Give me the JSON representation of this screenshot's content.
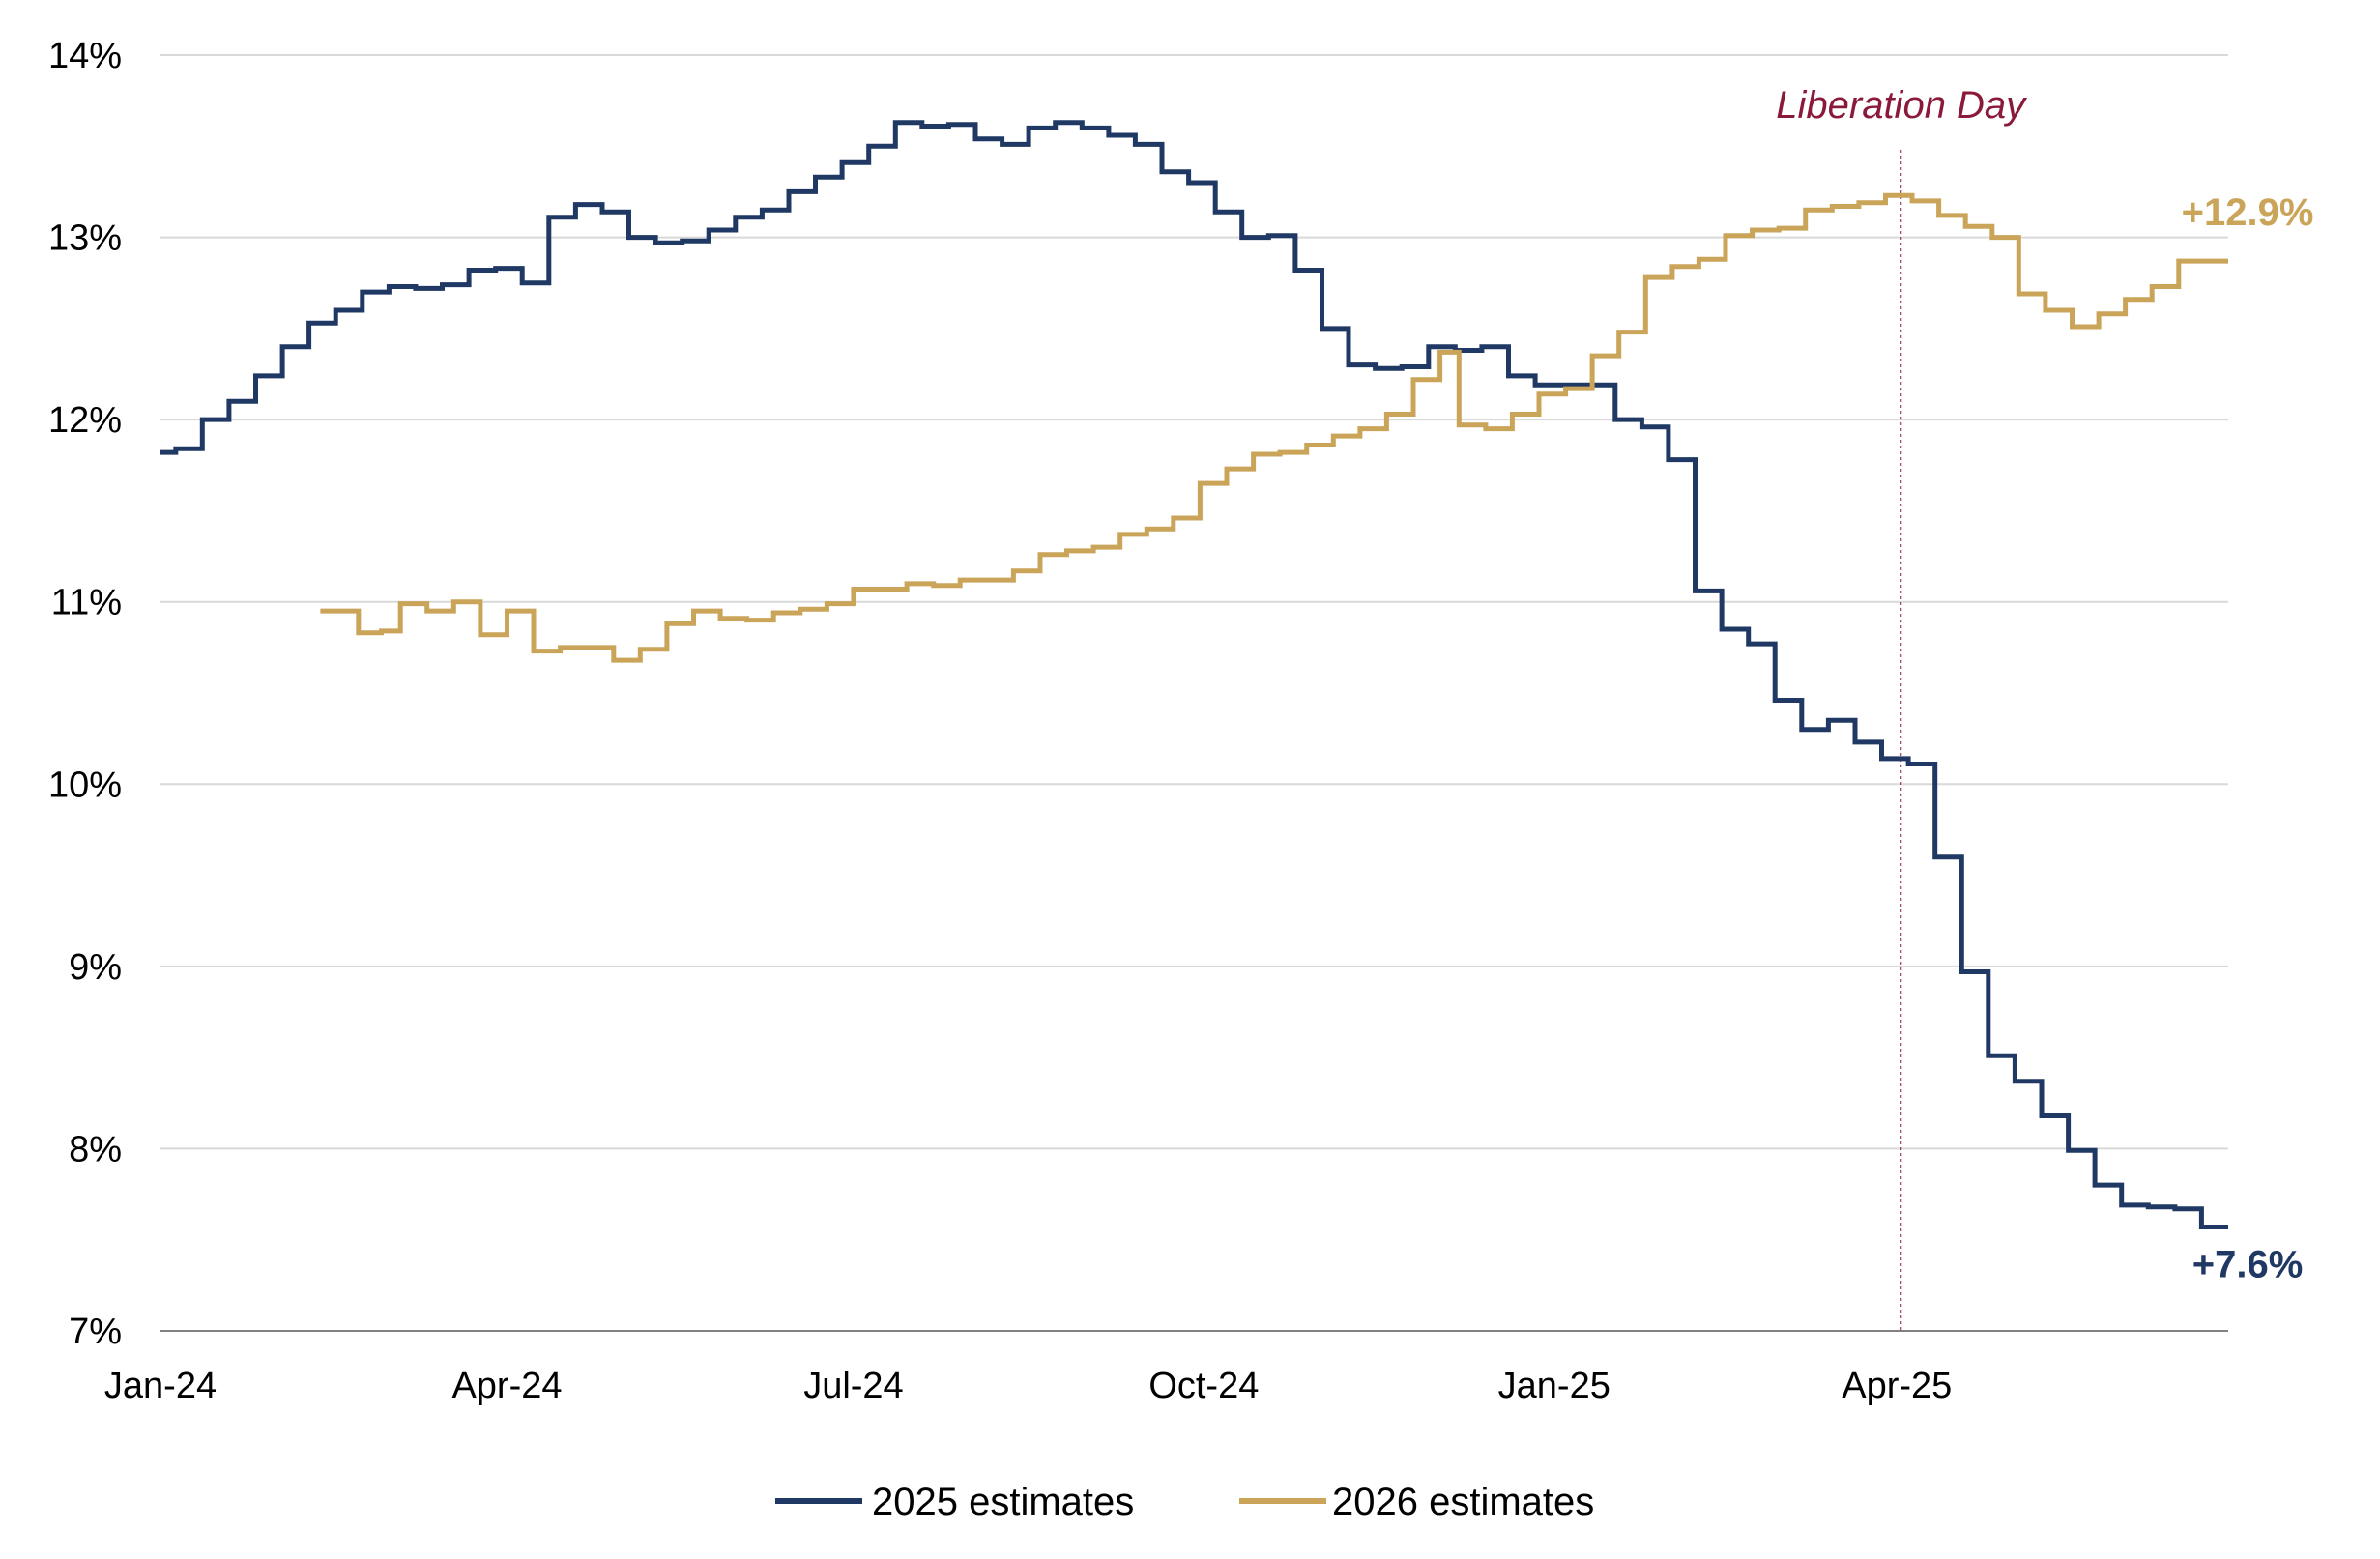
{
  "chart_data": {
    "type": "line",
    "title": "",
    "xlabel": "",
    "ylabel": "",
    "ylim": [
      7,
      14
    ],
    "y_ticks": [
      "7%",
      "8%",
      "9%",
      "10%",
      "11%",
      "12%",
      "13%",
      "14%"
    ],
    "y_tick_values": [
      7,
      8,
      9,
      10,
      11,
      12,
      13,
      14
    ],
    "x_ticks": [
      "Jan-24",
      "Apr-24",
      "Jul-24",
      "Oct-24",
      "Jan-25",
      "Apr-25"
    ],
    "x_tick_dates": [
      "2024-01-01",
      "2024-04-01",
      "2024-07-01",
      "2024-10-01",
      "2025-01-01",
      "2025-04-01"
    ],
    "xlim": [
      "2024-01-01",
      "2025-06-27"
    ],
    "grid": true,
    "legend_position": "bottom-center",
    "series": [
      {
        "name": "2025 estimates",
        "color": "#1f3864",
        "points": [
          [
            "2024-01-01",
            11.82
          ],
          [
            "2024-01-05",
            11.84
          ],
          [
            "2024-01-12",
            12.0
          ],
          [
            "2024-01-19",
            12.1
          ],
          [
            "2024-01-26",
            12.24
          ],
          [
            "2024-02-02",
            12.4
          ],
          [
            "2024-02-09",
            12.53
          ],
          [
            "2024-02-16",
            12.6
          ],
          [
            "2024-02-23",
            12.7
          ],
          [
            "2024-03-01",
            12.73
          ],
          [
            "2024-03-08",
            12.72
          ],
          [
            "2024-03-15",
            12.74
          ],
          [
            "2024-03-22",
            12.82
          ],
          [
            "2024-03-29",
            12.83
          ],
          [
            "2024-04-05",
            12.75
          ],
          [
            "2024-04-12",
            13.11
          ],
          [
            "2024-04-19",
            13.18
          ],
          [
            "2024-04-26",
            13.14
          ],
          [
            "2024-05-03",
            13.0
          ],
          [
            "2024-05-10",
            12.97
          ],
          [
            "2024-05-17",
            12.98
          ],
          [
            "2024-05-24",
            13.04
          ],
          [
            "2024-05-31",
            13.11
          ],
          [
            "2024-06-07",
            13.15
          ],
          [
            "2024-06-14",
            13.25
          ],
          [
            "2024-06-21",
            13.33
          ],
          [
            "2024-06-28",
            13.41
          ],
          [
            "2024-07-05",
            13.5
          ],
          [
            "2024-07-12",
            13.63
          ],
          [
            "2024-07-19",
            13.61
          ],
          [
            "2024-07-26",
            13.62
          ],
          [
            "2024-08-02",
            13.54
          ],
          [
            "2024-08-09",
            13.51
          ],
          [
            "2024-08-16",
            13.6
          ],
          [
            "2024-08-23",
            13.63
          ],
          [
            "2024-08-30",
            13.6
          ],
          [
            "2024-09-06",
            13.56
          ],
          [
            "2024-09-13",
            13.51
          ],
          [
            "2024-09-20",
            13.36
          ],
          [
            "2024-09-27",
            13.3
          ],
          [
            "2024-10-04",
            13.14
          ],
          [
            "2024-10-11",
            13.0
          ],
          [
            "2024-10-18",
            13.01
          ],
          [
            "2024-10-25",
            12.82
          ],
          [
            "2024-11-01",
            12.5
          ],
          [
            "2024-11-08",
            12.3
          ],
          [
            "2024-11-15",
            12.28
          ],
          [
            "2024-11-22",
            12.29
          ],
          [
            "2024-11-29",
            12.4
          ],
          [
            "2024-12-06",
            12.38
          ],
          [
            "2024-12-13",
            12.4
          ],
          [
            "2024-12-20",
            12.24
          ],
          [
            "2024-12-27",
            12.19
          ],
          [
            "2025-01-03",
            12.19
          ],
          [
            "2025-01-10",
            12.19
          ],
          [
            "2025-01-17",
            12.0
          ],
          [
            "2025-01-24",
            11.96
          ],
          [
            "2025-01-31",
            11.78
          ],
          [
            "2025-02-07",
            11.06
          ],
          [
            "2025-02-14",
            10.85
          ],
          [
            "2025-02-21",
            10.77
          ],
          [
            "2025-02-28",
            10.46
          ],
          [
            "2025-03-07",
            10.3
          ],
          [
            "2025-03-14",
            10.35
          ],
          [
            "2025-03-21",
            10.23
          ],
          [
            "2025-03-28",
            10.14
          ],
          [
            "2025-04-04",
            10.11
          ],
          [
            "2025-04-11",
            9.6
          ],
          [
            "2025-04-18",
            8.97
          ],
          [
            "2025-04-25",
            8.51
          ],
          [
            "2025-05-02",
            8.37
          ],
          [
            "2025-05-09",
            8.18
          ],
          [
            "2025-05-16",
            7.99
          ],
          [
            "2025-05-23",
            7.8
          ],
          [
            "2025-05-30",
            7.69
          ],
          [
            "2025-06-06",
            7.68
          ],
          [
            "2025-06-13",
            7.67
          ],
          [
            "2025-06-20",
            7.57
          ],
          [
            "2025-06-27",
            7.57
          ]
        ]
      },
      {
        "name": "2026 estimates",
        "color": "#c9a459",
        "points": [
          [
            "2024-02-12",
            10.95
          ],
          [
            "2024-02-19",
            10.95
          ],
          [
            "2024-02-22",
            10.83
          ],
          [
            "2024-02-28",
            10.84
          ],
          [
            "2024-03-04",
            10.99
          ],
          [
            "2024-03-11",
            10.95
          ],
          [
            "2024-03-18",
            11.0
          ],
          [
            "2024-03-25",
            10.82
          ],
          [
            "2024-04-01",
            10.95
          ],
          [
            "2024-04-08",
            10.73
          ],
          [
            "2024-04-15",
            10.75
          ],
          [
            "2024-04-29",
            10.68
          ],
          [
            "2024-05-06",
            10.74
          ],
          [
            "2024-05-13",
            10.88
          ],
          [
            "2024-05-20",
            10.95
          ],
          [
            "2024-05-27",
            10.91
          ],
          [
            "2024-06-03",
            10.9
          ],
          [
            "2024-06-10",
            10.94
          ],
          [
            "2024-06-17",
            10.96
          ],
          [
            "2024-06-24",
            10.99
          ],
          [
            "2024-07-01",
            11.07
          ],
          [
            "2024-07-15",
            11.1
          ],
          [
            "2024-07-22",
            11.09
          ],
          [
            "2024-07-29",
            11.12
          ],
          [
            "2024-08-12",
            11.17
          ],
          [
            "2024-08-19",
            11.26
          ],
          [
            "2024-08-26",
            11.28
          ],
          [
            "2024-09-02",
            11.3
          ],
          [
            "2024-09-09",
            11.37
          ],
          [
            "2024-09-16",
            11.4
          ],
          [
            "2024-09-23",
            11.46
          ],
          [
            "2024-09-30",
            11.65
          ],
          [
            "2024-10-07",
            11.73
          ],
          [
            "2024-10-14",
            11.81
          ],
          [
            "2024-10-21",
            11.82
          ],
          [
            "2024-10-28",
            11.86
          ],
          [
            "2024-11-04",
            11.91
          ],
          [
            "2024-11-11",
            11.95
          ],
          [
            "2024-11-18",
            12.03
          ],
          [
            "2024-11-25",
            12.22
          ],
          [
            "2024-12-02",
            12.37
          ],
          [
            "2024-12-07",
            11.97
          ],
          [
            "2024-12-14",
            11.95
          ],
          [
            "2024-12-21",
            12.03
          ],
          [
            "2024-12-28",
            12.14
          ],
          [
            "2025-01-04",
            12.17
          ],
          [
            "2025-01-11",
            12.35
          ],
          [
            "2025-01-18",
            12.48
          ],
          [
            "2025-01-25",
            12.78
          ],
          [
            "2025-02-01",
            12.84
          ],
          [
            "2025-02-08",
            12.88
          ],
          [
            "2025-02-15",
            13.01
          ],
          [
            "2025-02-22",
            13.04
          ],
          [
            "2025-03-01",
            13.05
          ],
          [
            "2025-03-08",
            13.15
          ],
          [
            "2025-03-15",
            13.17
          ],
          [
            "2025-03-22",
            13.19
          ],
          [
            "2025-03-29",
            13.23
          ],
          [
            "2025-04-05",
            13.2
          ],
          [
            "2025-04-12",
            13.12
          ],
          [
            "2025-04-19",
            13.06
          ],
          [
            "2025-04-26",
            13.0
          ],
          [
            "2025-05-03",
            12.69
          ],
          [
            "2025-05-10",
            12.6
          ],
          [
            "2025-05-17",
            12.51
          ],
          [
            "2025-05-24",
            12.58
          ],
          [
            "2025-05-31",
            12.66
          ],
          [
            "2025-06-07",
            12.73
          ],
          [
            "2025-06-14",
            12.87
          ],
          [
            "2025-06-27",
            12.87
          ]
        ]
      }
    ],
    "annotations": [
      {
        "type": "vline",
        "x": "2025-04-02",
        "label": "Liberation Day",
        "color": "#8b1a3a"
      }
    ],
    "end_labels": [
      {
        "series": "2026 estimates",
        "text": "+12.9%",
        "color": "#c9a459"
      },
      {
        "series": "2025 estimates",
        "text": "+7.6%",
        "color": "#1f3864"
      }
    ]
  }
}
